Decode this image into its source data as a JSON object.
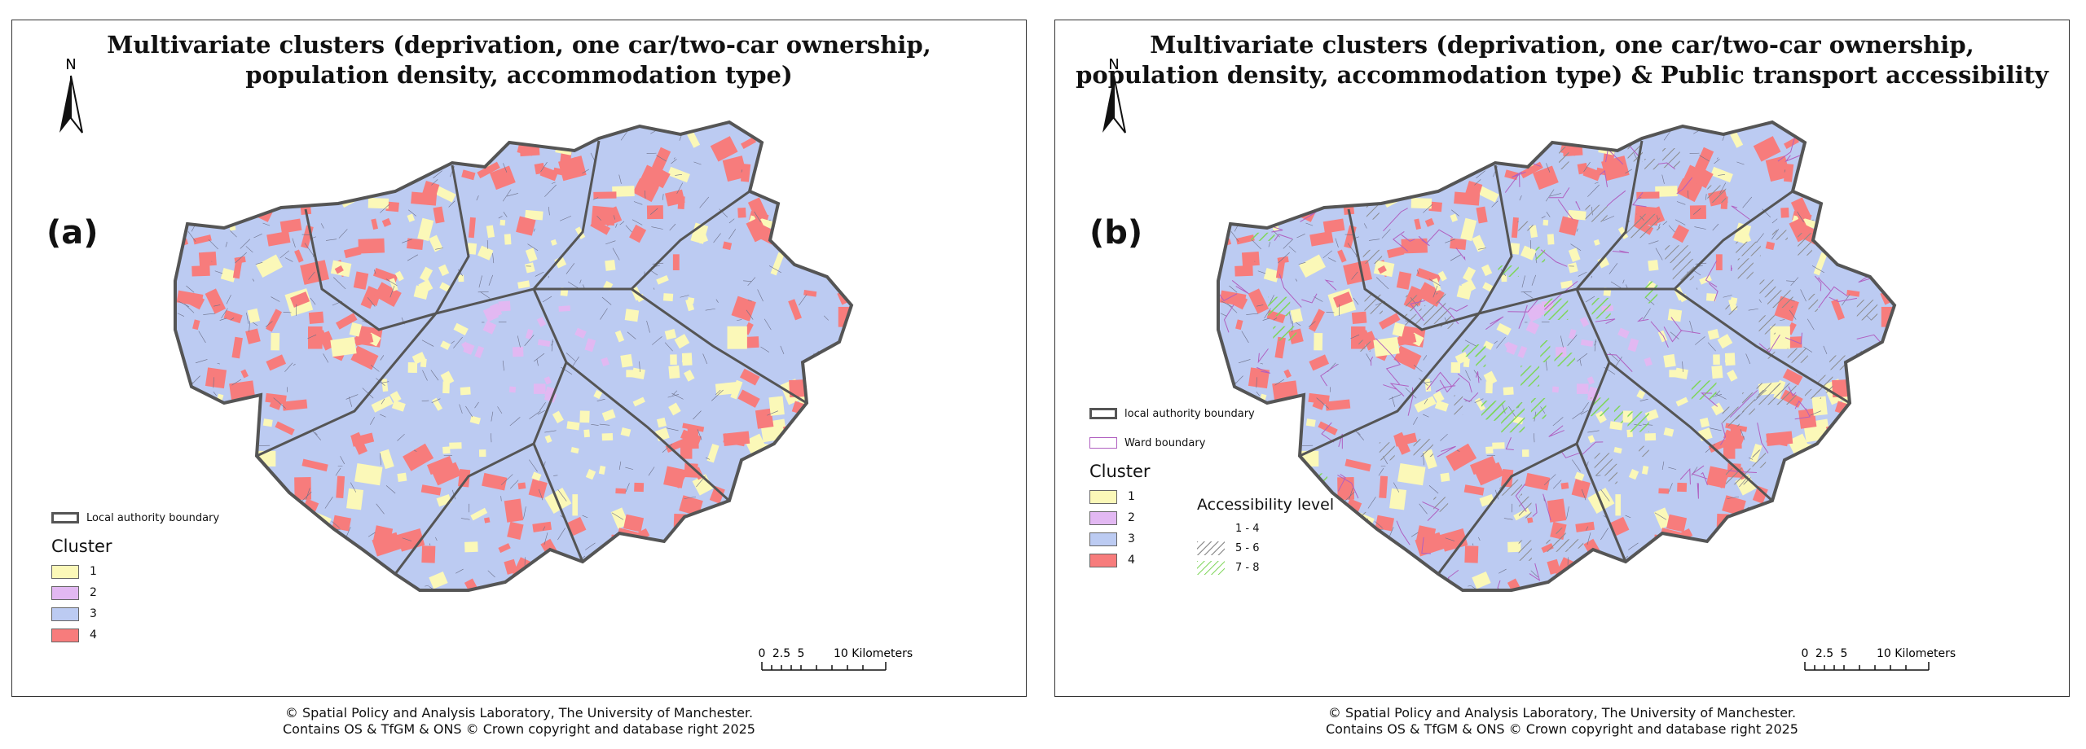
{
  "panel_a": {
    "title_line1": "Multivariate clusters (deprivation, one car/two-car ownership,",
    "title_line2": "population density, accommodation type)",
    "label": "(a)",
    "north": "N",
    "legend": {
      "boundary": "Local authority boundary",
      "cluster_title": "Cluster",
      "clusters": [
        {
          "label": "1",
          "color": "#fbf8b8"
        },
        {
          "label": "2",
          "color": "#e2b8f2"
        },
        {
          "label": "3",
          "color": "#bccbf2"
        },
        {
          "label": "4",
          "color": "#f77c7c"
        }
      ]
    },
    "scale": {
      "t0": "0",
      "t1": "2.5",
      "t2": "5",
      "t3": "10 Kilometers"
    },
    "credits_line1": "© Spatial Policy and Analysis Laboratory, The University of Manchester.",
    "credits_line2": "Contains OS & TfGM & ONS © Crown copyright and database right 2025"
  },
  "panel_b": {
    "title_line1": "Multivariate clusters (deprivation, one car/two-car ownership,",
    "title_line2": "population density, accommodation type)  & Public transport accessibility",
    "label": "(b)",
    "north": "N",
    "legend": {
      "boundary": "local authority boundary",
      "ward": "Ward boundary",
      "cluster_title": "Cluster",
      "clusters": [
        {
          "label": "1",
          "color": "#fbf8b8"
        },
        {
          "label": "2",
          "color": "#e2b8f2"
        },
        {
          "label": "3",
          "color": "#bccbf2"
        },
        {
          "label": "4",
          "color": "#f77c7c"
        }
      ],
      "access_title": "Accessibility level",
      "access": [
        {
          "label": "1 - 4",
          "color": "#ffffff"
        },
        {
          "label": "5 - 6",
          "color": "#8a8a8a"
        },
        {
          "label": "7 - 8",
          "color": "#7fd65a"
        }
      ]
    },
    "scale": {
      "t0": "0",
      "t1": "2.5",
      "t2": "5",
      "t3": "10 Kilometers"
    },
    "credits_line1": "© Spatial Policy and Analysis Laboratory, The University of Manchester.",
    "credits_line2": "Contains OS & TfGM & ONS © Crown copyright and database right 2025"
  },
  "colors": {
    "cluster_1": "#fbf8b8",
    "cluster_2": "#e2b8f2",
    "cluster_3": "#bccbf2",
    "cluster_4": "#f77c7c",
    "boundary": "#555555",
    "ward": "#b060c0",
    "access_high": "#7fd65a",
    "access_mid": "#8a8a8a"
  }
}
